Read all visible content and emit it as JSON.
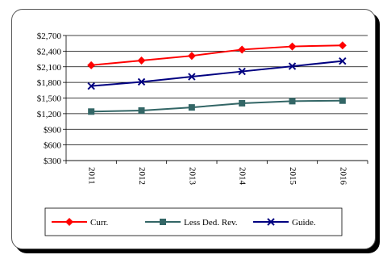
{
  "chart_data": {
    "type": "line",
    "categories": [
      "2011",
      "2012",
      "2013",
      "2014",
      "2015",
      "2016"
    ],
    "ylim": [
      300,
      2700
    ],
    "yticks": [
      "$2,700",
      "$2,400",
      "$2,100",
      "$1,800",
      "$1,500",
      "$1,200",
      "$900",
      "$600",
      "$300"
    ],
    "ytick_values": [
      2700,
      2400,
      2100,
      1800,
      1500,
      1200,
      900,
      600,
      300
    ],
    "grid": "horizontal",
    "legend_position": "bottom",
    "series": [
      {
        "name": "Curr.",
        "values": [
          2130,
          2220,
          2310,
          2430,
          2490,
          2510
        ],
        "color": "#ff0000",
        "marker": "diamond"
      },
      {
        "name": "Less Ded. Rev.",
        "values": [
          1240,
          1260,
          1320,
          1400,
          1440,
          1450
        ],
        "color": "#336666",
        "marker": "square"
      },
      {
        "name": "Guide.",
        "values": [
          1730,
          1810,
          1910,
          2010,
          2110,
          2210
        ],
        "color": "#000080",
        "marker": "x"
      }
    ]
  }
}
